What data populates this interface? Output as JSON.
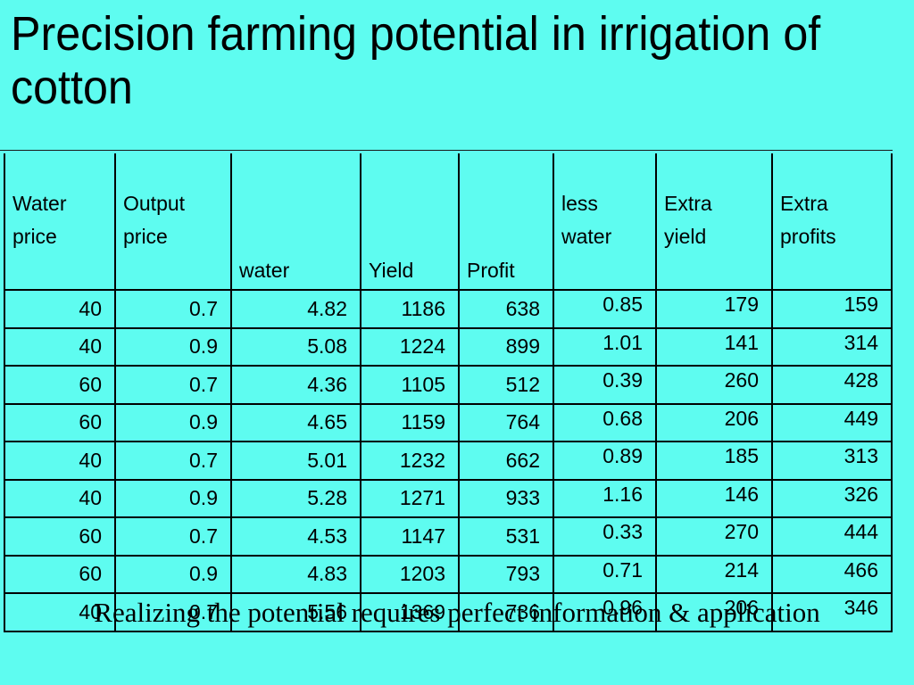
{
  "slide": {
    "title": "Precision farming potential  in irrigation of cotton",
    "caption": "Realizing the potential requires perfect information & application"
  },
  "table": {
    "headers": [
      "Water price",
      "Output price",
      "water",
      "Yield",
      "Profit",
      "less water",
      "Extra yield",
      "Extra profits"
    ],
    "rows": [
      [
        "40",
        "0.7",
        "4.82",
        "1186",
        "638",
        "0.85",
        "179",
        "159"
      ],
      [
        "40",
        "0.9",
        "5.08",
        "1224",
        "899",
        "1.01",
        "141",
        "314"
      ],
      [
        "60",
        "0.7",
        "4.36",
        "1105",
        "512",
        "0.39",
        "260",
        "428"
      ],
      [
        "60",
        "0.9",
        "4.65",
        "1159",
        "764",
        "0.68",
        "206",
        "449"
      ],
      [
        "40",
        "0.7",
        "5.01",
        "1232",
        "662",
        "0.89",
        "185",
        "313"
      ],
      [
        "40",
        "0.9",
        "5.28",
        "1271",
        "933",
        "1.16",
        "146",
        "326"
      ],
      [
        "60",
        "0.7",
        "4.53",
        "1147",
        "531",
        "0.33",
        "270",
        "444"
      ],
      [
        "60",
        "0.9",
        "4.83",
        "1203",
        "793",
        "0.71",
        "214",
        "466"
      ],
      [
        "40",
        "0.7",
        "5.56",
        "1369",
        "736",
        "0.96",
        "206",
        "346"
      ]
    ]
  },
  "colors": {
    "background": "#5efcf0",
    "text": "#000000"
  }
}
